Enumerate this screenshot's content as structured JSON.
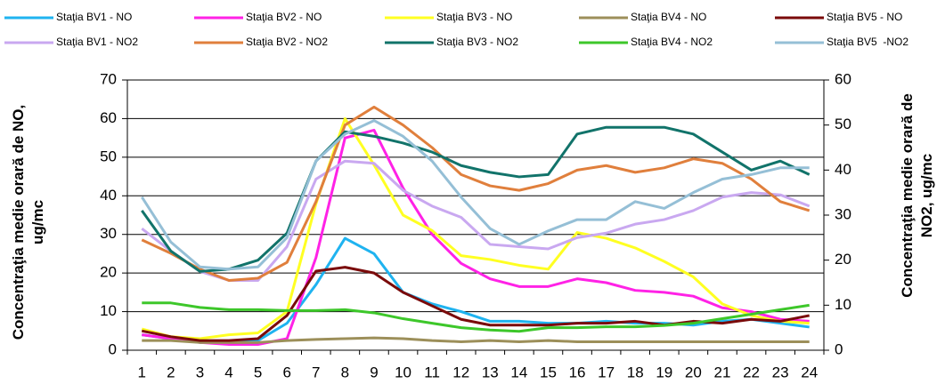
{
  "chart_data": {
    "type": "line",
    "ylabel": [
      "Concentraţia medie orară de NO,",
      "ug/mc"
    ],
    "y2label": [
      "Concentraţia medie orară de",
      "NO2, ug/mc"
    ],
    "categories": [
      "1",
      "2",
      "3",
      "4",
      "5",
      "6",
      "7",
      "8",
      "9",
      "10",
      "11",
      "12",
      "13",
      "14",
      "15",
      "16",
      "17",
      "18",
      "19",
      "20",
      "21",
      "22",
      "23",
      "24"
    ],
    "ylim": [
      0,
      70
    ],
    "yticks": [
      0,
      10,
      20,
      30,
      40,
      50,
      60,
      70
    ],
    "y2lim": [
      0,
      60
    ],
    "y2ticks": [
      0,
      10,
      20,
      30,
      40,
      50,
      60
    ],
    "grid": true,
    "series": [
      {
        "name": "Staţia BV1 - NO",
        "color": "#1fb3f0",
        "axis": "y",
        "values": [
          4,
          3,
          2,
          2,
          2.5,
          7,
          17,
          29,
          25,
          15,
          12,
          10,
          7.5,
          7.5,
          7,
          7,
          7.5,
          7,
          7,
          6.5,
          7.5,
          8,
          7,
          6
        ]
      },
      {
        "name": "Staţia BV2 - NO",
        "color": "#ff22e6",
        "axis": "y",
        "values": [
          4,
          3,
          2,
          1.5,
          1.5,
          3,
          24,
          55,
          57,
          42,
          30,
          22.5,
          18.5,
          16.5,
          16.5,
          18.5,
          17.5,
          15.5,
          15,
          14,
          11,
          10,
          8,
          7.5
        ]
      },
      {
        "name": "Staţia BV3 - NO",
        "color": "#ffff22",
        "axis": "y",
        "values": [
          5.5,
          3.5,
          3,
          4,
          4.5,
          10,
          38,
          60,
          48,
          35,
          31,
          24.5,
          23.5,
          22,
          21,
          30.5,
          29,
          26.5,
          23,
          19,
          12,
          9,
          7.5,
          7
        ]
      },
      {
        "name": "Staţia BV4 - NO",
        "color": "#9c8f5a",
        "axis": "y",
        "values": [
          2.5,
          2.5,
          2,
          2,
          2,
          2.5,
          2.8,
          3,
          3.2,
          3,
          2.5,
          2.2,
          2.5,
          2.2,
          2.5,
          2.2,
          2.2,
          2.2,
          2.2,
          2.2,
          2.2,
          2.2,
          2.2,
          2.2
        ]
      },
      {
        "name": "Staţia BV5 - NO",
        "color": "#7a0a0a",
        "axis": "y",
        "values": [
          5,
          3.5,
          2.5,
          2.5,
          3,
          9,
          20.5,
          21.5,
          20,
          15,
          11.5,
          8,
          6.5,
          6.5,
          6.5,
          7,
          7,
          7.5,
          6.5,
          7.5,
          7,
          8,
          7.5,
          9
        ]
      },
      {
        "name": "Staţia BV1 - NO2",
        "color": "#c9a8f0",
        "axis": "y2",
        "values": [
          27,
          22,
          17.5,
          15.5,
          15.5,
          23,
          38,
          42,
          41.5,
          35.5,
          32,
          29.5,
          23.5,
          23,
          22.5,
          25,
          26,
          28,
          29,
          31,
          34,
          35,
          34.5,
          32
        ]
      },
      {
        "name": "Staţia BV2 - NO2",
        "color": "#e07f3c",
        "axis": "y2",
        "values": [
          24.5,
          21.5,
          18,
          15.5,
          16,
          19.5,
          33,
          50,
          54,
          50,
          45,
          39,
          36.5,
          35.5,
          37,
          40,
          41,
          39.5,
          40.5,
          42.5,
          41.5,
          38,
          33,
          31
        ]
      },
      {
        "name": "Staţia BV3 - NO2",
        "color": "#11736a",
        "axis": "y2",
        "values": [
          31,
          22,
          17.5,
          18,
          20,
          26,
          42,
          48.5,
          47.5,
          46,
          44,
          41,
          39.5,
          38.5,
          39,
          48,
          49.5,
          49.5,
          49.5,
          48,
          44,
          40,
          42,
          39
        ]
      },
      {
        "name": "Staţia BV4 - NO2",
        "color": "#3dc72a",
        "axis": "y2",
        "values": [
          10.5,
          10.5,
          9.5,
          9,
          9,
          8.8,
          8.8,
          9,
          8.3,
          7,
          6,
          5,
          4.5,
          4.2,
          5,
          5,
          5.2,
          5.2,
          5.5,
          6,
          7,
          8,
          9,
          10
        ]
      },
      {
        "name": "Staţia BV5  -NO2",
        "color": "#95bfd6",
        "axis": "y2",
        "values": [
          34,
          24,
          18.5,
          18,
          18.5,
          25,
          42,
          48,
          51,
          47.5,
          42,
          34,
          27,
          23.5,
          26.5,
          29,
          29,
          33,
          31.5,
          35,
          38,
          39,
          40.5,
          40.5
        ]
      }
    ]
  }
}
